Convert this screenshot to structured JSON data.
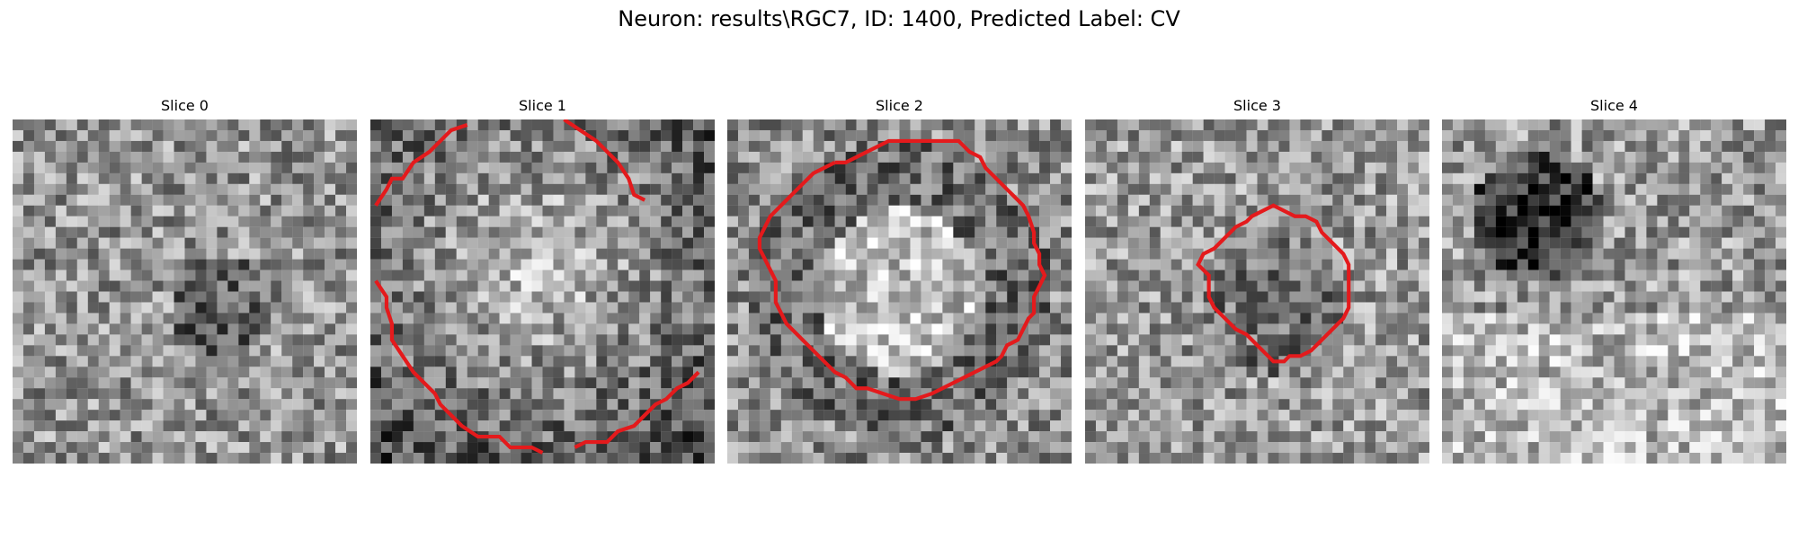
{
  "figure": {
    "title": "Neuron: results\\RGC7, ID: 1400, Predicted Label: CV"
  },
  "panels": [
    {
      "title": "Slice 0",
      "seed": 11,
      "mode": "noise",
      "contour": null
    },
    {
      "title": "Slice 1",
      "seed": 23,
      "mode": "bright-center",
      "contour": [
        [
          [
            1,
            16
          ],
          [
            3,
            13
          ],
          [
            4,
            11
          ],
          [
            6,
            11
          ],
          [
            8,
            8
          ],
          [
            11,
            6
          ],
          [
            13,
            4
          ],
          [
            15,
            2
          ],
          [
            18,
            1
          ]
        ],
        [
          [
            36,
            0
          ],
          [
            39,
            2
          ],
          [
            42,
            4
          ],
          [
            44,
            6
          ],
          [
            46,
            8
          ],
          [
            48,
            11
          ],
          [
            49,
            14
          ],
          [
            51,
            15
          ]
        ],
        [
          [
            1,
            30
          ],
          [
            3,
            33
          ],
          [
            3,
            35
          ],
          [
            4,
            38
          ],
          [
            4,
            41
          ],
          [
            6,
            44
          ],
          [
            8,
            47
          ],
          [
            10,
            49
          ],
          [
            12,
            51
          ],
          [
            13,
            53
          ],
          [
            15,
            55
          ],
          [
            17,
            57
          ],
          [
            20,
            59
          ],
          [
            24,
            59
          ],
          [
            26,
            61
          ],
          [
            30,
            61
          ],
          [
            32,
            62
          ]
        ],
        [
          [
            38,
            61
          ],
          [
            40,
            60
          ],
          [
            44,
            60
          ],
          [
            46,
            58
          ],
          [
            49,
            57
          ],
          [
            51,
            55
          ],
          [
            53,
            53
          ],
          [
            55,
            52
          ],
          [
            57,
            50
          ],
          [
            59,
            49
          ],
          [
            61,
            47
          ]
        ]
      ]
    },
    {
      "title": "Slice 2",
      "seed": 37,
      "mode": "ring",
      "contour": [
        [
          [
            20,
            8
          ],
          [
            22,
            8
          ],
          [
            24,
            7
          ],
          [
            26,
            6
          ],
          [
            28,
            5
          ],
          [
            30,
            4
          ],
          [
            35,
            4
          ],
          [
            40,
            4
          ],
          [
            43,
            4
          ],
          [
            44,
            5
          ],
          [
            45,
            6
          ],
          [
            47,
            7
          ],
          [
            48,
            9
          ],
          [
            49,
            10
          ],
          [
            50,
            11
          ],
          [
            51,
            12
          ],
          [
            52,
            13
          ],
          [
            53,
            14
          ],
          [
            54,
            15
          ],
          [
            55,
            16
          ],
          [
            56,
            18
          ],
          [
            57,
            21
          ],
          [
            57,
            23
          ],
          [
            58,
            25
          ],
          [
            58,
            27
          ],
          [
            59,
            29
          ],
          [
            58,
            31
          ],
          [
            57,
            33
          ],
          [
            57,
            36
          ],
          [
            56,
            37
          ],
          [
            55,
            39
          ],
          [
            54,
            41
          ],
          [
            52,
            42
          ],
          [
            51,
            44
          ],
          [
            50,
            45
          ],
          [
            48,
            46
          ],
          [
            46,
            47
          ],
          [
            44,
            48
          ],
          [
            42,
            49
          ],
          [
            40,
            50
          ],
          [
            38,
            51
          ],
          [
            35,
            52
          ],
          [
            32,
            52
          ],
          [
            29,
            51
          ],
          [
            26,
            50
          ],
          [
            24,
            50
          ],
          [
            22,
            48
          ],
          [
            20,
            47
          ],
          [
            18,
            45
          ],
          [
            16,
            43
          ],
          [
            14,
            41
          ],
          [
            12,
            39
          ],
          [
            11,
            38
          ],
          [
            10,
            36
          ],
          [
            9,
            34
          ],
          [
            9,
            32
          ],
          [
            9,
            30
          ],
          [
            8,
            28
          ],
          [
            7,
            26
          ],
          [
            6,
            24
          ],
          [
            6,
            22
          ],
          [
            7,
            20
          ],
          [
            8,
            18
          ],
          [
            10,
            16
          ],
          [
            12,
            14
          ],
          [
            14,
            12
          ],
          [
            16,
            10
          ],
          [
            18,
            9
          ],
          [
            20,
            8
          ]
        ]
      ]
    },
    {
      "title": "Slice 3",
      "seed": 53,
      "mode": "ring-small",
      "contour": [
        [
          [
            27,
            21
          ],
          [
            28,
            20
          ],
          [
            30,
            19
          ],
          [
            31,
            18
          ],
          [
            33,
            17
          ],
          [
            35,
            16
          ],
          [
            37,
            17
          ],
          [
            39,
            18
          ],
          [
            41,
            18
          ],
          [
            43,
            19
          ],
          [
            44,
            21
          ],
          [
            45,
            22
          ],
          [
            46,
            23
          ],
          [
            48,
            25
          ],
          [
            49,
            27
          ],
          [
            49,
            30
          ],
          [
            49,
            33
          ],
          [
            49,
            35
          ],
          [
            48,
            37
          ],
          [
            47,
            38
          ],
          [
            45,
            40
          ],
          [
            43,
            42
          ],
          [
            42,
            43
          ],
          [
            40,
            44
          ],
          [
            38,
            44
          ],
          [
            37,
            45
          ],
          [
            35,
            45
          ],
          [
            34,
            44
          ],
          [
            32,
            42
          ],
          [
            30,
            40
          ],
          [
            28,
            39
          ],
          [
            26,
            37
          ],
          [
            24,
            35
          ],
          [
            23,
            33
          ],
          [
            23,
            31
          ],
          [
            23,
            29
          ],
          [
            21,
            27
          ],
          [
            22,
            25
          ],
          [
            24,
            24
          ],
          [
            25,
            23
          ],
          [
            26,
            22
          ],
          [
            27,
            21
          ]
        ]
      ]
    },
    {
      "title": "Slice 4",
      "seed": 71,
      "mode": "dark-blob",
      "contour": null
    }
  ],
  "style": {
    "contour_color": "#e41a1c"
  }
}
